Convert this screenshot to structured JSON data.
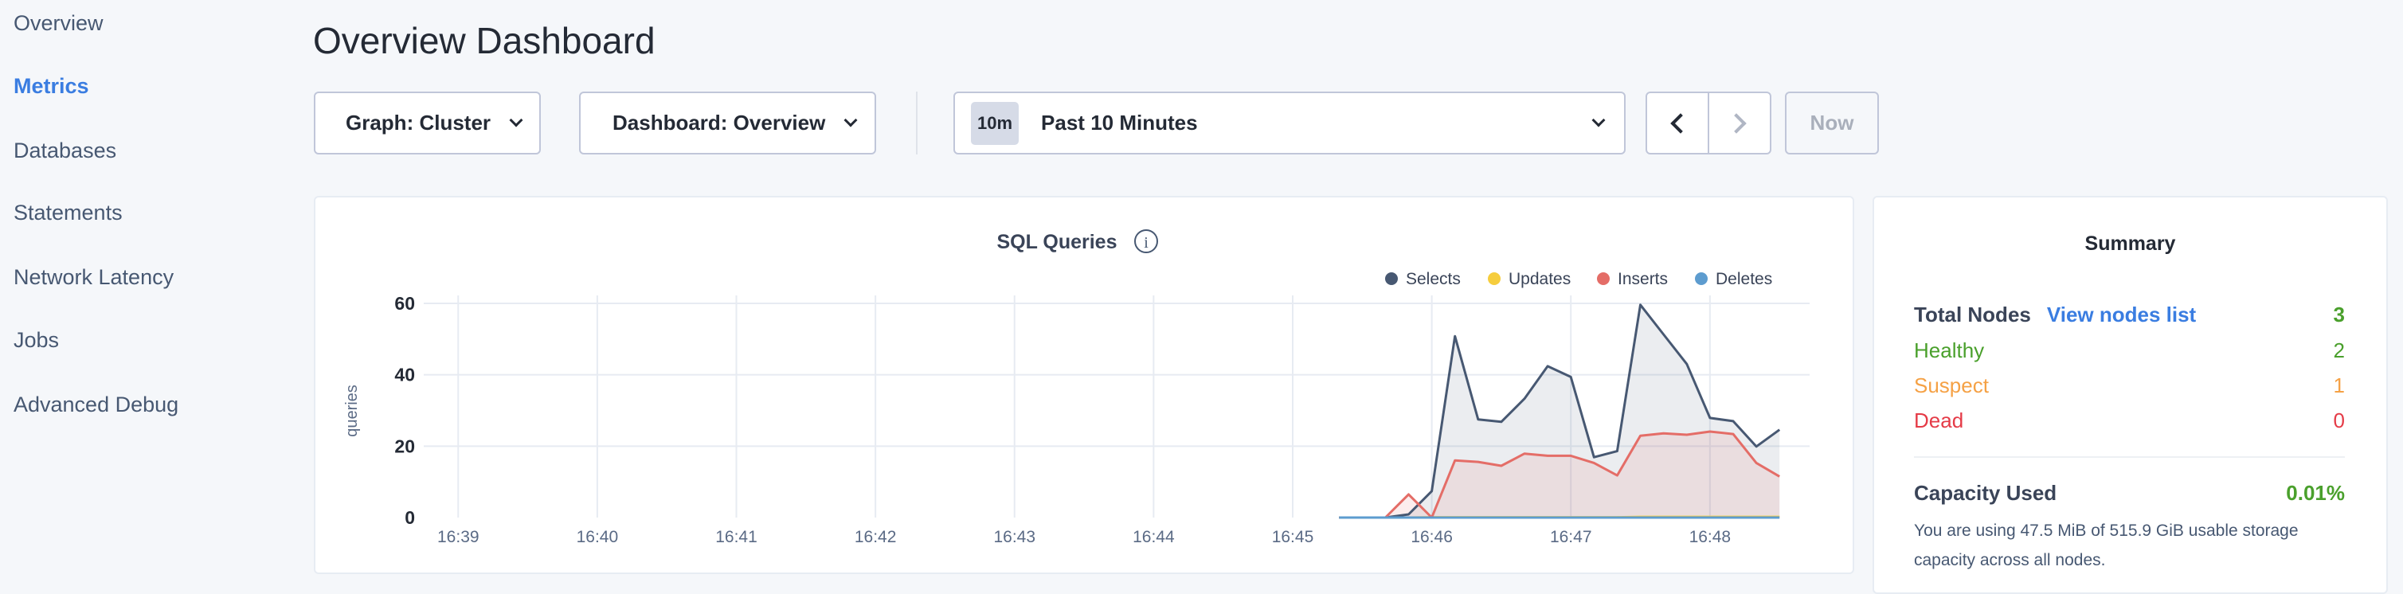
{
  "sidebar": {
    "items": [
      {
        "label": "Overview"
      },
      {
        "label": "Metrics",
        "active": true
      },
      {
        "label": "Databases"
      },
      {
        "label": "Statements"
      },
      {
        "label": "Network Latency"
      },
      {
        "label": "Jobs"
      },
      {
        "label": "Advanced Debug"
      }
    ]
  },
  "header": {
    "title": "Overview Dashboard"
  },
  "toolbar": {
    "graph_label": "Graph: Cluster",
    "dashboard_label": "Dashboard: Overview",
    "time_badge": "10m",
    "time_label": "Past 10 Minutes",
    "now_label": "Now"
  },
  "colors": {
    "accent": "#3a7de1",
    "selects": "#475872",
    "updates": "#f6cd3d",
    "inserts": "#e46d67",
    "deletes": "#5d9ccf",
    "healthy": "#4aa02c",
    "suspect": "#f5a145",
    "dead": "#e53b47"
  },
  "chart_data": {
    "type": "area",
    "title": "SQL Queries",
    "ylabel": "queries",
    "xlabel": "",
    "ylim": [
      0,
      60
    ],
    "yticks": [
      "0",
      "20",
      "40",
      "60"
    ],
    "xticks": [
      "16:39",
      "16:40",
      "16:41",
      "16:42",
      "16:43",
      "16:44",
      "16:45",
      "16:46",
      "16:47",
      "16:48"
    ],
    "xlim": [
      "16:38:52",
      "16:48:43"
    ],
    "grid": true,
    "legend": "top-right",
    "x": [
      "16:45:20",
      "16:45:30",
      "16:45:40",
      "16:45:50",
      "16:46:00",
      "16:46:10",
      "16:46:20",
      "16:46:30",
      "16:46:40",
      "16:46:50",
      "16:47:00",
      "16:47:10",
      "16:47:20",
      "16:47:30",
      "16:47:40",
      "16:47:50",
      "16:48:00",
      "16:48:10",
      "16:48:20",
      "16:48:30"
    ],
    "series": [
      {
        "name": "Selects",
        "values": [
          0,
          0,
          0,
          0.9,
          7.4,
          50.8,
          27.5,
          26.8,
          33.3,
          42.4,
          39.4,
          16.9,
          18.6,
          59.6,
          51.3,
          43,
          27.9,
          27,
          19.9,
          24.6
        ]
      },
      {
        "name": "Updates",
        "values": [
          0,
          0,
          0,
          0,
          0.1,
          0.1,
          0.1,
          0.1,
          0.1,
          0.1,
          0.1,
          0.1,
          0.1,
          0.2,
          0.2,
          0.2,
          0.2,
          0.2,
          0.2,
          0.2
        ]
      },
      {
        "name": "Inserts",
        "values": [
          0,
          0,
          0,
          6.5,
          0,
          16,
          15.6,
          14.5,
          17.9,
          17.3,
          17.3,
          15.3,
          11.8,
          22.9,
          23.6,
          23.2,
          24.1,
          23.4,
          15.3,
          11.5
        ]
      },
      {
        "name": "Deletes",
        "values": [
          0,
          0,
          0,
          0,
          0,
          0,
          0,
          0,
          0,
          0,
          0,
          0,
          0,
          0,
          0,
          0,
          0,
          0,
          0,
          0
        ]
      }
    ]
  },
  "summary": {
    "title": "Summary",
    "total_label": "Total Nodes",
    "view_link": "View nodes list",
    "total": "3",
    "healthy_label": "Healthy",
    "healthy": "2",
    "suspect_label": "Suspect",
    "suspect": "1",
    "dead_label": "Dead",
    "dead": "0",
    "capacity_label": "Capacity Used",
    "capacity": "0.01%",
    "capacity_text": "You are using 47.5 MiB of 515.9 GiB usable storage capacity across all nodes."
  }
}
